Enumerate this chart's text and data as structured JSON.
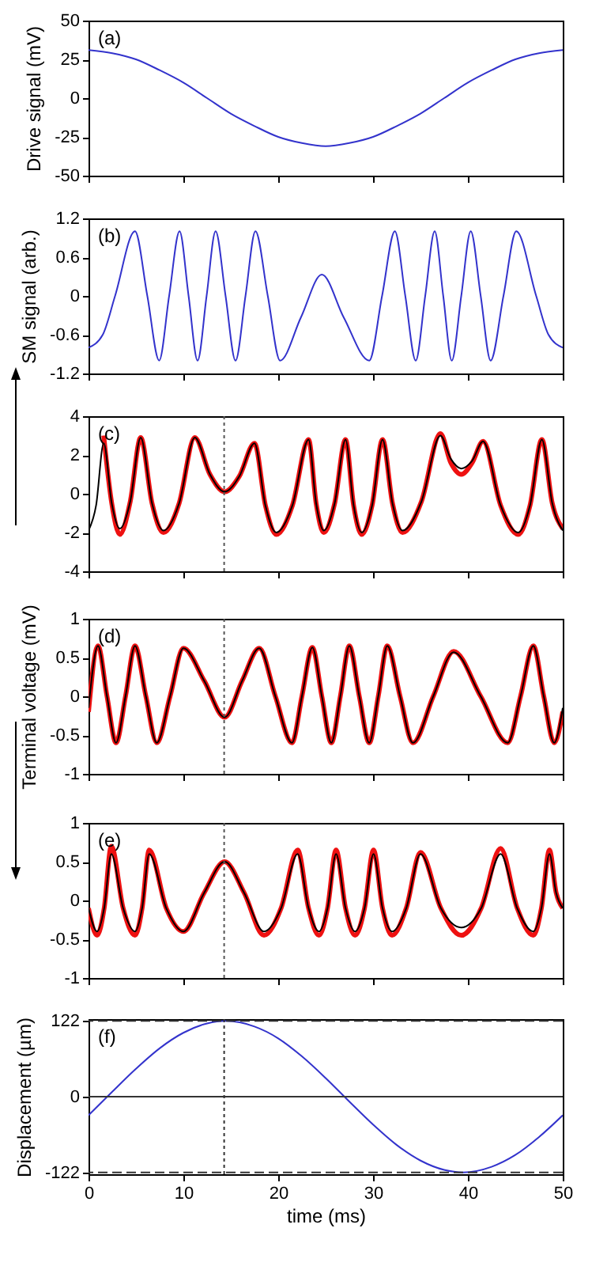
{
  "chart_data": [
    {
      "type": "line",
      "ylabel": "Drive signal (mV)",
      "annotations": [
        "(a)"
      ],
      "xlim": [
        0,
        50
      ],
      "xticks": [
        0,
        10,
        20,
        30,
        40,
        50
      ],
      "ylim": [
        -50,
        50
      ],
      "yticks": [
        -50,
        -25,
        0,
        25,
        50
      ],
      "tick_labels": "y",
      "x": [
        0,
        2.5,
        5,
        7.5,
        10,
        12.5,
        15,
        17.5,
        20,
        22.5,
        25,
        27.5,
        30,
        32.5,
        35,
        37.5,
        40,
        42.5,
        45,
        47.5,
        50
      ],
      "series": [
        {
          "color": "#3333cc",
          "values": [
            31,
            29,
            25,
            18,
            10,
            0,
            -10,
            -18,
            -25,
            -29,
            -31,
            -29,
            -25,
            -18,
            -10,
            0,
            10,
            18,
            25,
            29,
            31
          ]
        }
      ]
    },
    {
      "type": "line",
      "ylabel": "SM signal (arb.)",
      "annotations": [
        "(b)"
      ],
      "xlim": [
        0,
        50
      ],
      "xticks": [
        0,
        10,
        20,
        30,
        40,
        50
      ],
      "ylim": [
        -1.2,
        1.2
      ],
      "yticks": [
        -1.2,
        -0.6,
        0,
        0.6,
        1.2
      ],
      "tick_labels": "y",
      "x": [
        0,
        1.5,
        2.8,
        4.9,
        6.2,
        7.45,
        8.5,
        9.6,
        10.55,
        11.5,
        12.45,
        13.4,
        14.45,
        15.5,
        16.55,
        17.6,
        18.9,
        20.2,
        22.4,
        24.6,
        26.9,
        29.6,
        30.95,
        32.3,
        33.4,
        34.5,
        35.5,
        36.5,
        37.4,
        38.3,
        39.3,
        40.3,
        41.35,
        42.4,
        43.75,
        45.1,
        47.2,
        48.5,
        50
      ],
      "series": [
        {
          "color": "#3333cc",
          "values": [
            -0.8,
            -0.6,
            0,
            1,
            0,
            -1,
            0,
            1,
            0,
            -1,
            0,
            1,
            0,
            -1,
            0,
            1,
            0,
            -1,
            -0.33,
            0.33,
            -0.33,
            -1,
            0,
            1,
            0,
            -1,
            0,
            1,
            0,
            -1,
            0,
            1,
            0,
            -1,
            0,
            1,
            0,
            -0.6,
            -0.8
          ]
        }
      ]
    },
    {
      "type": "line",
      "annotations": [
        "(c)"
      ],
      "xlim": [
        0,
        50
      ],
      "xticks": [
        0,
        10,
        20,
        30,
        40,
        50
      ],
      "ylim": [
        -4,
        4
      ],
      "yticks": [
        -4,
        -2,
        0,
        2,
        4
      ],
      "tick_labels": "y",
      "ref_lines": [
        {
          "axis": "x",
          "value": 14.3,
          "color": "#555555",
          "line_style": "dotted"
        }
      ],
      "x": [
        0,
        0.8,
        1.6,
        2.45,
        3.3,
        4.4,
        5.5,
        6.7,
        7.9,
        9.55,
        11.2,
        12.8,
        14.35,
        15.9,
        17.5,
        18.65,
        19.8,
        21.5,
        23.2,
        24.0,
        24.8,
        25.95,
        27.1,
        27.95,
        28.8,
        29.9,
        31.0,
        32.05,
        33.1,
        35.1,
        37.1,
        38.2,
        39.3,
        40.45,
        41.6,
        43.45,
        45.3,
        46.55,
        47.8,
        48.9,
        50
      ],
      "series": [
        {
          "color": "#ee1111",
          "values": [
            null,
            null,
            3.0,
            -0.5,
            -2.1,
            -0.4,
            2.9,
            -0.5,
            -2.0,
            -0.5,
            2.9,
            1.0,
            0.1,
            0.9,
            2.6,
            -0.6,
            -2.1,
            -0.6,
            2.8,
            -0.5,
            -2.0,
            -0.5,
            2.8,
            -0.6,
            -2.1,
            -0.6,
            2.8,
            -0.5,
            -2.0,
            -0.4,
            3.1,
            1.6,
            1.0,
            1.6,
            2.7,
            -0.6,
            -2.1,
            -0.6,
            2.8,
            -0.5,
            -1.8
          ]
        },
        {
          "color": "#000000",
          "values": [
            -1.9,
            -0.6,
            2.6,
            -0.5,
            -1.8,
            -0.4,
            2.9,
            -0.5,
            -1.9,
            -0.5,
            2.9,
            1.0,
            0.1,
            0.9,
            2.6,
            -0.6,
            -2.0,
            -0.6,
            2.8,
            -0.5,
            -1.9,
            -0.5,
            2.8,
            -0.6,
            -2.0,
            -0.6,
            2.8,
            -0.5,
            -1.9,
            -0.4,
            3.0,
            1.8,
            1.3,
            1.7,
            2.7,
            -0.6,
            -2.0,
            -0.6,
            2.8,
            -0.5,
            -1.9
          ]
        }
      ]
    },
    {
      "type": "line",
      "ylabel": "Terminal voltage (mV)",
      "annotations": [
        "(d)"
      ],
      "xlim": [
        0,
        50
      ],
      "xticks": [
        0,
        10,
        20,
        30,
        40,
        50
      ],
      "ylim": [
        -1,
        1
      ],
      "yticks": [
        -1,
        -0.5,
        0,
        0.5,
        1
      ],
      "tick_labels": "y",
      "ref_lines": [
        {
          "axis": "x",
          "value": 14.3,
          "color": "#555555",
          "line_style": "dotted"
        }
      ],
      "x": [
        0,
        1.0,
        1.95,
        2.9,
        3.9,
        4.9,
        6.05,
        7.2,
        8.6,
        10.0,
        12.2,
        14.35,
        16.2,
        18.0,
        19.7,
        21.45,
        22.5,
        23.6,
        24.6,
        25.6,
        26.55,
        27.5,
        28.55,
        29.6,
        30.55,
        31.5,
        32.85,
        34.2,
        36.35,
        38.5,
        41.35,
        44.2,
        45.55,
        46.9,
        48.0,
        49.1,
        50
      ],
      "series": [
        {
          "color": "#ee1111",
          "values": [
            -0.2,
            0.65,
            0,
            -0.6,
            0,
            0.65,
            0,
            -0.6,
            0,
            0.62,
            0.2,
            -0.27,
            0.2,
            0.62,
            0,
            -0.6,
            0,
            0.63,
            0,
            -0.6,
            0,
            0.65,
            0,
            -0.6,
            0,
            0.65,
            0,
            -0.6,
            0,
            0.58,
            0,
            -0.6,
            0,
            0.65,
            0,
            -0.6,
            -0.2
          ]
        },
        {
          "color": "#000000",
          "values": [
            -0.15,
            0.65,
            0,
            -0.6,
            0,
            0.65,
            0,
            -0.6,
            0,
            0.62,
            0.2,
            -0.27,
            0.2,
            0.62,
            0,
            -0.6,
            0,
            0.63,
            0,
            -0.6,
            0,
            0.65,
            0,
            -0.6,
            0,
            0.65,
            0,
            -0.6,
            0,
            0.57,
            0,
            -0.6,
            0,
            0.65,
            0,
            -0.6,
            -0.15
          ]
        }
      ]
    },
    {
      "type": "line",
      "annotations": [
        "(e)"
      ],
      "xlim": [
        0,
        50
      ],
      "xticks": [
        0,
        10,
        20,
        30,
        40,
        50
      ],
      "ylim": [
        -1,
        1
      ],
      "yticks": [
        -1,
        -0.5,
        0,
        0.5,
        1
      ],
      "tick_labels": "y",
      "ref_lines": [
        {
          "axis": "x",
          "value": 14.3,
          "color": "#555555",
          "line_style": "dotted"
        }
      ],
      "x": [
        0,
        0.9,
        1.65,
        2.4,
        3.65,
        4.9,
        5.65,
        6.4,
        8.2,
        10.0,
        12.2,
        14.35,
        16.4,
        18.5,
        20.3,
        22.05,
        23.2,
        24.3,
        25.2,
        26.1,
        27.1,
        28.1,
        29.1,
        30.05,
        31.0,
        32.0,
        33.5,
        35.0,
        37.15,
        39.3,
        41.4,
        43.45,
        45.2,
        46.9,
        47.75,
        48.6,
        49.3,
        50
      ],
      "series": [
        {
          "color": "#ee1111",
          "values": [
            -0.1,
            -0.45,
            -0.1,
            0.7,
            -0.1,
            -0.45,
            -0.1,
            0.65,
            -0.1,
            -0.4,
            0.1,
            0.5,
            0.1,
            -0.45,
            -0.1,
            0.65,
            -0.1,
            -0.45,
            -0.1,
            0.65,
            -0.1,
            -0.45,
            -0.1,
            0.65,
            -0.1,
            -0.45,
            -0.1,
            0.62,
            -0.1,
            -0.45,
            -0.1,
            0.67,
            -0.1,
            -0.45,
            -0.1,
            0.65,
            0.1,
            -0.1
          ]
        },
        {
          "color": "#000000",
          "values": [
            -0.1,
            -0.4,
            -0.1,
            0.6,
            -0.1,
            -0.4,
            -0.1,
            0.6,
            -0.1,
            -0.4,
            0.1,
            0.5,
            0.1,
            -0.4,
            -0.1,
            0.6,
            -0.1,
            -0.4,
            -0.1,
            0.6,
            -0.1,
            -0.4,
            -0.1,
            0.6,
            -0.1,
            -0.4,
            -0.1,
            0.6,
            -0.1,
            -0.35,
            -0.1,
            0.6,
            -0.1,
            -0.4,
            -0.1,
            0.6,
            0.1,
            -0.1
          ]
        }
      ]
    },
    {
      "type": "line",
      "xlabel": "time (ms)",
      "ylabel": "Displacement (µm)",
      "annotations": [
        "(f)"
      ],
      "xlim": [
        0,
        50
      ],
      "xticks": [
        0,
        10,
        20,
        30,
        40,
        50
      ],
      "ylim": [
        -125,
        125
      ],
      "yticks": [
        -122,
        0,
        122
      ],
      "ref_lines": [
        {
          "axis": "x",
          "value": 14.3,
          "color": "#333333",
          "line_style": "dotted"
        },
        {
          "axis": "y",
          "value": 122,
          "color": "#333333",
          "line_style": "dashed"
        },
        {
          "axis": "y",
          "value": -122,
          "color": "#333333",
          "line_style": "dashed"
        },
        {
          "axis": "y",
          "value": 0,
          "color": "#333333",
          "line_style": "solid"
        }
      ],
      "x": [
        0,
        2.5,
        5,
        7.5,
        10,
        12.5,
        14.5,
        17.5,
        20,
        22.5,
        25,
        27.5,
        30,
        32.5,
        35,
        37.5,
        39.5,
        42.5,
        45,
        47.5,
        50
      ],
      "series": [
        {
          "color": "#3333cc",
          "values": [
            -30,
            8,
            45,
            78,
            103,
            118,
            122,
            113,
            94,
            65,
            30,
            -8,
            -45,
            -78,
            -103,
            -118,
            -122,
            -113,
            -94,
            -65,
            -30
          ]
        }
      ]
    }
  ]
}
